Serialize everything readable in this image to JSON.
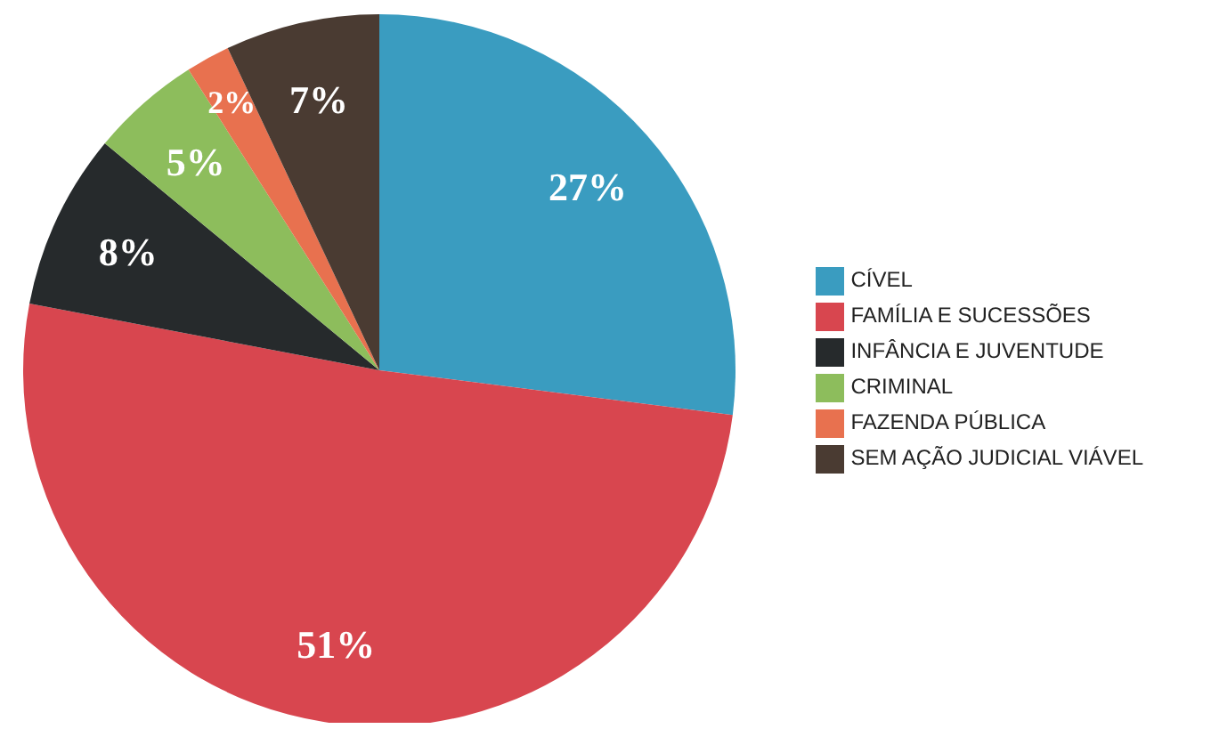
{
  "chart_data": {
    "type": "pie",
    "categories": [
      "CÍVEL",
      "FAMÍLIA E SUCESSÕES",
      "INFÂNCIA E JUVENTUDE",
      "CRIMINAL",
      "FAZENDA PÚBLICA",
      "SEM AÇÃO JUDICIAL VIÁVEL"
    ],
    "values": [
      27,
      51,
      8,
      5,
      2,
      7
    ],
    "value_labels": [
      "27%",
      "51%",
      "8%",
      "5%",
      "2%",
      "7%"
    ],
    "colors": [
      "#3a9cc0",
      "#d8464f",
      "#262a2c",
      "#8dbd5c",
      "#e8714f",
      "#4a3b32"
    ],
    "legend": "right"
  }
}
